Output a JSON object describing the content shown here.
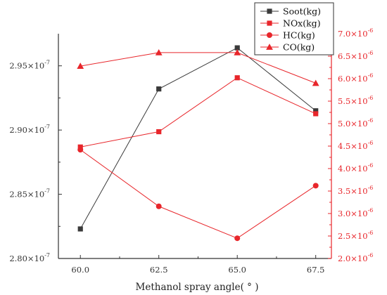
{
  "chart_data": {
    "type": "line",
    "title": "",
    "xlabel": "Methanol spray angle( ° )",
    "x": [
      60.0,
      62.5,
      65.0,
      67.5
    ],
    "x_tick_labels": [
      "60.0",
      "62.5",
      "65.0",
      "67.5"
    ],
    "xlim": [
      59.3,
      68.0
    ],
    "left_axis": {
      "ylim": [
        2.8e-07,
        2.975e-07
      ],
      "ticks": [
        2.8e-07,
        2.85e-07,
        2.9e-07,
        2.95e-07
      ],
      "tick_labels": [
        "2.80×10",
        "2.85×10",
        "2.90×10",
        "2.95×10"
      ],
      "tick_exponent": "-7",
      "color": "#333333"
    },
    "right_axis": {
      "ylim": [
        2e-06,
        7e-06
      ],
      "ticks": [
        2e-06,
        2.5e-06,
        3e-06,
        3.5e-06,
        4e-06,
        4.5e-06,
        5e-06,
        5.5e-06,
        6e-06,
        6.5e-06,
        7e-06
      ],
      "tick_labels": [
        "2.0×10",
        "2.5×10",
        "3.0×10",
        "3.5×10",
        "4.0×10",
        "4.5×10",
        "5.0×10",
        "5.5×10",
        "6.0×10",
        "6.5×10",
        "7.0×10"
      ],
      "tick_exponent": "-6",
      "color": "#e8262b"
    },
    "series": [
      {
        "name": "Soot(kg)",
        "axis": "left",
        "marker": "square",
        "color": "#3a3a3a",
        "values": [
          2.823e-07,
          2.932e-07,
          2.964e-07,
          2.915e-07
        ]
      },
      {
        "name": "NOx(kg)",
        "axis": "right",
        "marker": "square",
        "color": "#e8262b",
        "values": [
          4.48e-06,
          4.82e-06,
          6.02e-06,
          5.22e-06
        ]
      },
      {
        "name": "HC(kg)",
        "axis": "right",
        "marker": "circle",
        "color": "#e8262b",
        "values": [
          4.42e-06,
          3.16e-06,
          2.45e-06,
          3.62e-06
        ]
      },
      {
        "name": "CO(kg)",
        "axis": "right",
        "marker": "triangle",
        "color": "#e8262b",
        "values": [
          6.28e-06,
          6.58e-06,
          6.58e-06,
          5.9e-06
        ]
      }
    ],
    "legend_position": "top-right",
    "grid": false
  }
}
